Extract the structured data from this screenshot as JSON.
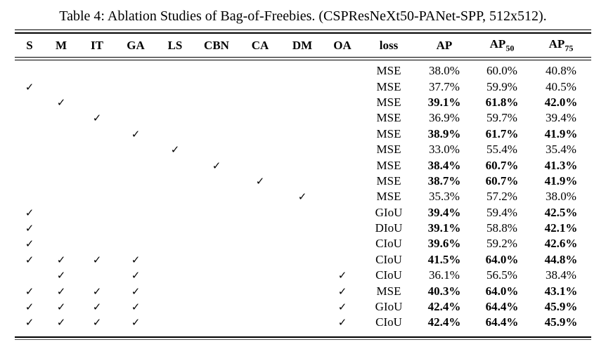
{
  "caption": "Table 4: Ablation Studies of Bag-of-Freebies. (CSPResNeXt50-PANet-SPP, 512x512).",
  "table": {
    "checkmark_glyph": "✓",
    "header": {
      "check_cols": [
        "S",
        "M",
        "IT",
        "GA",
        "LS",
        "CBN",
        "CA",
        "DM",
        "OA"
      ],
      "loss_label": "loss",
      "ap_label": "AP",
      "ap50_base": "AP",
      "ap50_sub": "50",
      "ap75_base": "AP",
      "ap75_sub": "75"
    },
    "rows": [
      {
        "checks": [],
        "loss": "MSE",
        "ap": "38.0%",
        "ap50": "60.0%",
        "ap75": "40.8%",
        "bold": []
      },
      {
        "checks": [
          "S"
        ],
        "loss": "MSE",
        "ap": "37.7%",
        "ap50": "59.9%",
        "ap75": "40.5%",
        "bold": []
      },
      {
        "checks": [
          "M"
        ],
        "loss": "MSE",
        "ap": "39.1%",
        "ap50": "61.8%",
        "ap75": "42.0%",
        "bold": [
          "ap",
          "ap50",
          "ap75"
        ]
      },
      {
        "checks": [
          "IT"
        ],
        "loss": "MSE",
        "ap": "36.9%",
        "ap50": "59.7%",
        "ap75": "39.4%",
        "bold": []
      },
      {
        "checks": [
          "GA"
        ],
        "loss": "MSE",
        "ap": "38.9%",
        "ap50": "61.7%",
        "ap75": "41.9%",
        "bold": [
          "ap",
          "ap50",
          "ap75"
        ]
      },
      {
        "checks": [
          "LS"
        ],
        "loss": "MSE",
        "ap": "33.0%",
        "ap50": "55.4%",
        "ap75": "35.4%",
        "bold": []
      },
      {
        "checks": [
          "CBN"
        ],
        "loss": "MSE",
        "ap": "38.4%",
        "ap50": "60.7%",
        "ap75": "41.3%",
        "bold": [
          "ap",
          "ap50",
          "ap75"
        ]
      },
      {
        "checks": [
          "CA"
        ],
        "loss": "MSE",
        "ap": "38.7%",
        "ap50": "60.7%",
        "ap75": "41.9%",
        "bold": [
          "ap",
          "ap50",
          "ap75"
        ]
      },
      {
        "checks": [
          "DM"
        ],
        "loss": "MSE",
        "ap": "35.3%",
        "ap50": "57.2%",
        "ap75": "38.0%",
        "bold": []
      },
      {
        "checks": [
          "S"
        ],
        "loss": "GIoU",
        "ap": "39.4%",
        "ap50": "59.4%",
        "ap75": "42.5%",
        "bold": [
          "ap",
          "ap75"
        ]
      },
      {
        "checks": [
          "S"
        ],
        "loss": "DIoU",
        "ap": "39.1%",
        "ap50": "58.8%",
        "ap75": "42.1%",
        "bold": [
          "ap",
          "ap75"
        ]
      },
      {
        "checks": [
          "S"
        ],
        "loss": "CIoU",
        "ap": "39.6%",
        "ap50": "59.2%",
        "ap75": "42.6%",
        "bold": [
          "ap",
          "ap75"
        ]
      },
      {
        "checks": [
          "S",
          "M",
          "IT",
          "GA"
        ],
        "loss": "CIoU",
        "ap": "41.5%",
        "ap50": "64.0%",
        "ap75": "44.8%",
        "bold": [
          "ap",
          "ap50",
          "ap75"
        ]
      },
      {
        "checks": [
          "M",
          "GA",
          "OA"
        ],
        "loss": "CIoU",
        "ap": "36.1%",
        "ap50": "56.5%",
        "ap75": "38.4%",
        "bold": []
      },
      {
        "checks": [
          "S",
          "M",
          "IT",
          "GA",
          "OA"
        ],
        "loss": "MSE",
        "ap": "40.3%",
        "ap50": "64.0%",
        "ap75": "43.1%",
        "bold": [
          "ap",
          "ap50",
          "ap75"
        ]
      },
      {
        "checks": [
          "S",
          "M",
          "IT",
          "GA",
          "OA"
        ],
        "loss": "GIoU",
        "ap": "42.4%",
        "ap50": "64.4%",
        "ap75": "45.9%",
        "bold": [
          "ap",
          "ap50",
          "ap75"
        ]
      },
      {
        "checks": [
          "S",
          "M",
          "IT",
          "GA",
          "OA"
        ],
        "loss": "CIoU",
        "ap": "42.4%",
        "ap50": "64.4%",
        "ap75": "45.9%",
        "bold": [
          "ap",
          "ap50",
          "ap75"
        ]
      }
    ],
    "colors": {
      "text": "#000000",
      "background": "#ffffff",
      "rule": "#000000"
    }
  }
}
